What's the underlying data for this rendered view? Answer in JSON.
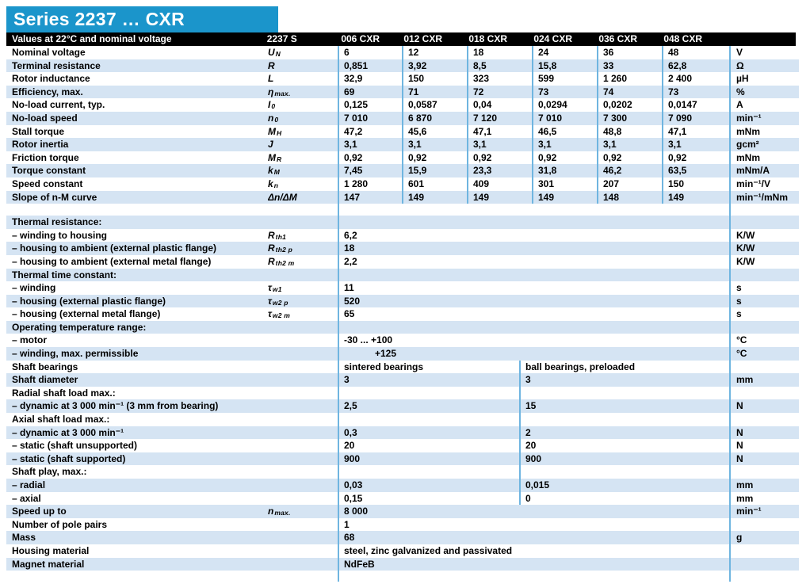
{
  "title": "Series 2237 … CXR",
  "table": {
    "header": {
      "label": "Values at 22°C and nominal voltage",
      "series_col": "2237 S",
      "cols": [
        "006 CXR",
        "012 CXR",
        "018 CXR",
        "024 CXR",
        "036 CXR",
        "048 CXR"
      ]
    },
    "rows": [
      {
        "type": "cols6",
        "label": "Nominal voltage",
        "symbol": {
          "b": "U",
          "s": "N"
        },
        "values": [
          "6",
          "12",
          "18",
          "24",
          "36",
          "48"
        ],
        "unit": "V"
      },
      {
        "type": "cols6",
        "label": "Terminal resistance",
        "symbol": {
          "b": "R"
        },
        "values": [
          "0,851",
          "3,92",
          "8,5",
          "15,8",
          "33",
          "62,8"
        ],
        "unit": "Ω"
      },
      {
        "type": "cols6",
        "label": "Rotor inductance",
        "symbol": {
          "b": "L"
        },
        "values": [
          "32,9",
          "150",
          "323",
          "599",
          "1 260",
          "2 400"
        ],
        "unit": "µH"
      },
      {
        "type": "cols6",
        "label": "Efficiency, max.",
        "symbol": {
          "b": "η",
          "s": "max."
        },
        "values": [
          "69",
          "71",
          "72",
          "73",
          "74",
          "73"
        ],
        "unit": "%"
      },
      {
        "type": "cols6",
        "label": "No-load current, typ.",
        "symbol": {
          "b": "I",
          "s": "0"
        },
        "values": [
          "0,125",
          "0,0587",
          "0,04",
          "0,0294",
          "0,0202",
          "0,0147"
        ],
        "unit": "A"
      },
      {
        "type": "cols6",
        "label": "No-load speed",
        "symbol": {
          "b": "n",
          "s": "0"
        },
        "values": [
          "7 010",
          "6 870",
          "7 120",
          "7 010",
          "7 300",
          "7 090"
        ],
        "unit": "min⁻¹"
      },
      {
        "type": "cols6",
        "label": "Stall torque",
        "symbol": {
          "b": "M",
          "s": "H"
        },
        "values": [
          "47,2",
          "45,6",
          "47,1",
          "46,5",
          "48,8",
          "47,1"
        ],
        "unit": "mNm"
      },
      {
        "type": "cols6",
        "label": "Rotor inertia",
        "symbol": {
          "b": "J"
        },
        "values": [
          "3,1",
          "3,1",
          "3,1",
          "3,1",
          "3,1",
          "3,1"
        ],
        "unit": "gcm²"
      },
      {
        "type": "cols6",
        "label": "Friction torque",
        "symbol": {
          "b": "M",
          "s": "R"
        },
        "values": [
          "0,92",
          "0,92",
          "0,92",
          "0,92",
          "0,92",
          "0,92"
        ],
        "unit": "mNm"
      },
      {
        "type": "cols6",
        "label": "Torque constant",
        "symbol": {
          "b": "k",
          "s": "M"
        },
        "values": [
          "7,45",
          "15,9",
          "23,3",
          "31,8",
          "46,2",
          "63,5"
        ],
        "unit": "mNm/A"
      },
      {
        "type": "cols6",
        "label": "Speed constant",
        "symbol": {
          "b": "k",
          "s": "n"
        },
        "values": [
          "1 280",
          "601",
          "409",
          "301",
          "207",
          "150"
        ],
        "unit": "min⁻¹/V"
      },
      {
        "type": "cols6",
        "label": "Slope of n-M curve",
        "symbol": {
          "b": "Δn/ΔM"
        },
        "values": [
          "147",
          "149",
          "149",
          "149",
          "148",
          "149"
        ],
        "unit": "min⁻¹/mNm"
      },
      {
        "type": "spacer"
      },
      {
        "type": "section",
        "label": "Thermal resistance:"
      },
      {
        "type": "span",
        "label": "– winding to housing",
        "symbol": {
          "b": "R",
          "s": "th1"
        },
        "values": [
          "6,2"
        ],
        "unit": "K/W"
      },
      {
        "type": "span",
        "label": "– housing to ambient (external plastic flange)",
        "symbol": {
          "b": "R",
          "s": "th2 p"
        },
        "values": [
          "18"
        ],
        "unit": "K/W"
      },
      {
        "type": "span",
        "label": "– housing to ambient (external metal flange)",
        "symbol": {
          "b": "R",
          "s": "th2 m"
        },
        "values": [
          "2,2"
        ],
        "unit": "K/W"
      },
      {
        "type": "section",
        "label": "Thermal time constant:"
      },
      {
        "type": "span",
        "label": "– winding",
        "symbol": {
          "b": "τ",
          "s": "w1"
        },
        "values": [
          "11"
        ],
        "unit": "s"
      },
      {
        "type": "span",
        "label": "– housing (external plastic flange)",
        "symbol": {
          "b": "τ",
          "s": "w2 p"
        },
        "values": [
          "520"
        ],
        "unit": "s"
      },
      {
        "type": "span",
        "label": "– housing (external metal flange)",
        "symbol": {
          "b": "τ",
          "s": "w2 m"
        },
        "values": [
          "65"
        ],
        "unit": "s"
      },
      {
        "type": "section",
        "label": "Operating temperature range:"
      },
      {
        "type": "span",
        "label": "– motor",
        "values": [
          "-30 ... +100"
        ],
        "unit": "°C"
      },
      {
        "type": "span",
        "label": "– winding, max. permissible",
        "values": [
          "+125"
        ],
        "unit": "°C",
        "indent": true
      },
      {
        "type": "cols2",
        "label": "Shaft bearings",
        "values": [
          "sintered bearings",
          "ball bearings, preloaded"
        ]
      },
      {
        "type": "cols2",
        "label": "Shaft diameter",
        "values": [
          "3",
          "3"
        ],
        "unit": "mm"
      },
      {
        "type": "section2",
        "label": "Radial shaft load max.:"
      },
      {
        "type": "cols2",
        "label": "– dynamic at 3 000 min⁻¹ (3 mm from bearing)",
        "values": [
          "2,5",
          "15"
        ],
        "unit": "N"
      },
      {
        "type": "section2",
        "label": "Axial shaft load max.:"
      },
      {
        "type": "cols2",
        "label": "– dynamic at 3 000 min⁻¹",
        "values": [
          "0,3",
          "2"
        ],
        "unit": "N"
      },
      {
        "type": "cols2",
        "label": "– static (shaft unsupported)",
        "values": [
          "20",
          "20"
        ],
        "unit": "N"
      },
      {
        "type": "cols2",
        "label": "– static (shaft supported)",
        "values": [
          "900",
          "900"
        ],
        "unit": "N"
      },
      {
        "type": "section2",
        "label": "Shaft play, max.:"
      },
      {
        "type": "cols2",
        "label": "– radial",
        "values": [
          "0,03",
          "0,015"
        ],
        "unit": "mm"
      },
      {
        "type": "cols2",
        "label": "– axial",
        "values": [
          "0,15",
          "0"
        ],
        "unit": "mm"
      },
      {
        "type": "span",
        "label": "Speed up to",
        "symbol": {
          "b": "n",
          "s": "max."
        },
        "values": [
          "8 000"
        ],
        "unit": "min⁻¹"
      },
      {
        "type": "span",
        "label": "Number of pole pairs",
        "values": [
          "1"
        ]
      },
      {
        "type": "span",
        "label": "Mass",
        "values": [
          "68"
        ],
        "unit": "g"
      },
      {
        "type": "span",
        "label": "Housing material",
        "values": [
          "steel, zinc galvanized and passivated"
        ]
      },
      {
        "type": "span",
        "label": "Magnet material",
        "values": [
          "NdFeB"
        ]
      },
      {
        "type": "trail"
      }
    ]
  },
  "colors": {
    "title_bar": "#1b95cb",
    "header_bar": "#000000",
    "header_text": "#ffffff",
    "stripe": "#d5e4f3",
    "grid_line": "#6fb5e0",
    "text": "#000000"
  }
}
